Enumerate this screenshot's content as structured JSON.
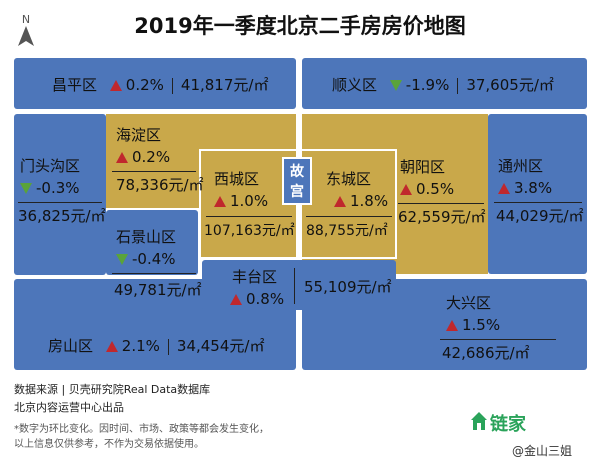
{
  "title": "2019年一季度北京二手房房价地图",
  "compass": "N",
  "palace": "故宫",
  "districts": {
    "changping": {
      "name": "昌平区",
      "change": "0.2%",
      "dir": "up",
      "price": "41,817元/㎡"
    },
    "shunyi": {
      "name": "顺义区",
      "change": "-1.9%",
      "dir": "down",
      "price": "37,605元/㎡"
    },
    "mentougou": {
      "name": "门头沟区",
      "change": "-0.3%",
      "dir": "down",
      "price": "36,825元/㎡"
    },
    "haidian": {
      "name": "海淀区",
      "change": "0.2%",
      "dir": "up",
      "price": "78,336元/㎡"
    },
    "xicheng": {
      "name": "西城区",
      "change": "1.0%",
      "dir": "up",
      "price": "107,163元/㎡"
    },
    "dongcheng": {
      "name": "东城区",
      "change": "1.8%",
      "dir": "up",
      "price": "88,755元/㎡"
    },
    "chaoyang": {
      "name": "朝阳区",
      "change": "0.5%",
      "dir": "up",
      "price": "62,559元/㎡"
    },
    "tongzhou": {
      "name": "通州区",
      "change": "3.8%",
      "dir": "up",
      "price": "44,029元/㎡"
    },
    "shijingshan": {
      "name": "石景山区",
      "change": "-0.4%",
      "dir": "down",
      "price": "49,781元/㎡"
    },
    "fengtai": {
      "name": "丰台区",
      "change": "0.8%",
      "dir": "up",
      "price": "55,109元/㎡"
    },
    "fangshan": {
      "name": "房山区",
      "change": "2.1%",
      "dir": "up",
      "price": "34,454元/㎡"
    },
    "daxing": {
      "name": "大兴区",
      "change": "1.5%",
      "dir": "up",
      "price": "42,686元/㎡"
    }
  },
  "footer": {
    "source": "数据来源 | 贝壳研究院Real Data数据库",
    "producer": "北京内容运营中心出品",
    "note1": "*数字为环比变化。因时间、市场、政策等都会发生变化，",
    "note2": "以上信息仅供参考，不作为交易依据使用。"
  },
  "brand": "链家",
  "watermark": "@金山三姐",
  "colors": {
    "outer": "#4d76ba",
    "inner": "#c9a84a",
    "up": "#c0282d",
    "down": "#5aa33a"
  },
  "icons": [
    "compass-icon",
    "up-triangle-icon",
    "down-triangle-icon",
    "house-icon"
  ]
}
